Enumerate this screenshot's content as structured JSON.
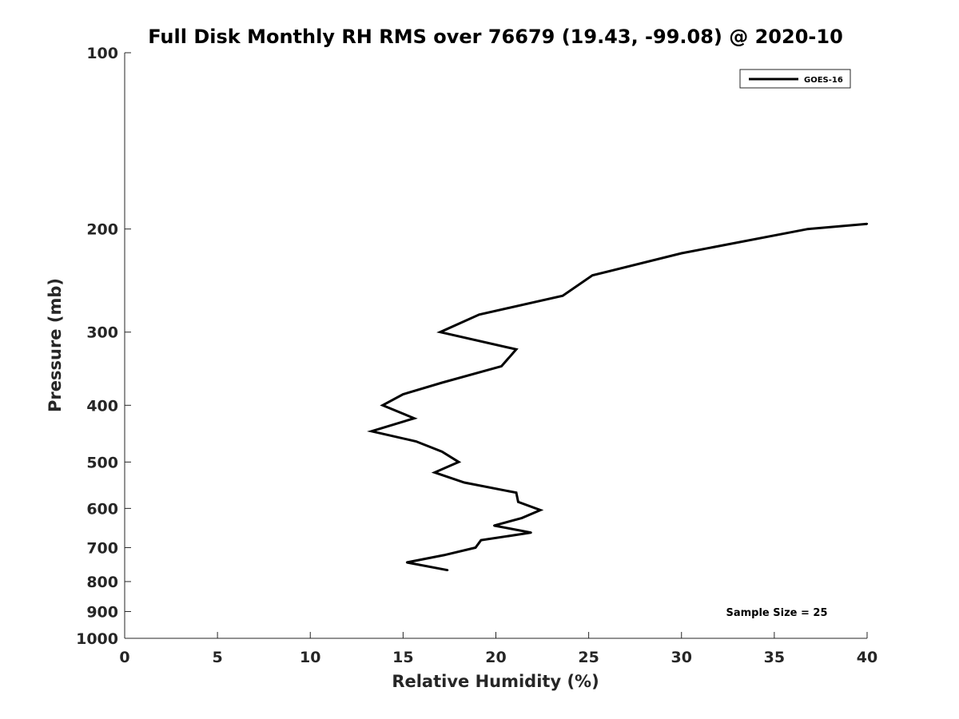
{
  "chart_data": {
    "type": "line",
    "title": "Full Disk Monthly RH RMS over 76679 (19.43, -99.08) @ 2020-10",
    "xlabel": "Relative Humidity (%)",
    "ylabel": "Pressure (mb)",
    "xlim": [
      0,
      40
    ],
    "ylim": [
      100,
      1000
    ],
    "y_scale": "log",
    "y_reversed": true,
    "grid": false,
    "legend_position": "top-right",
    "x_ticks": [
      0,
      5,
      10,
      15,
      20,
      25,
      30,
      35,
      40
    ],
    "y_ticks": [
      100,
      200,
      300,
      400,
      500,
      600,
      700,
      800,
      900,
      1000
    ],
    "series": [
      {
        "name": "GOES-16",
        "color": "#000000",
        "points": [
          {
            "x": 40.0,
            "y": 196
          },
          {
            "x": 36.8,
            "y": 200
          },
          {
            "x": 30.0,
            "y": 220
          },
          {
            "x": 25.2,
            "y": 240
          },
          {
            "x": 23.6,
            "y": 260
          },
          {
            "x": 19.1,
            "y": 280
          },
          {
            "x": 17.0,
            "y": 300
          },
          {
            "x": 21.1,
            "y": 321
          },
          {
            "x": 20.3,
            "y": 343
          },
          {
            "x": 17.1,
            "y": 366
          },
          {
            "x": 15.0,
            "y": 383
          },
          {
            "x": 13.9,
            "y": 400
          },
          {
            "x": 15.6,
            "y": 421
          },
          {
            "x": 13.3,
            "y": 443
          },
          {
            "x": 15.7,
            "y": 461
          },
          {
            "x": 17.1,
            "y": 480
          },
          {
            "x": 18.0,
            "y": 500
          },
          {
            "x": 16.7,
            "y": 521
          },
          {
            "x": 18.3,
            "y": 542
          },
          {
            "x": 21.1,
            "y": 564
          },
          {
            "x": 21.2,
            "y": 585
          },
          {
            "x": 22.4,
            "y": 604
          },
          {
            "x": 21.4,
            "y": 623
          },
          {
            "x": 19.9,
            "y": 642
          },
          {
            "x": 21.9,
            "y": 660
          },
          {
            "x": 19.2,
            "y": 680
          },
          {
            "x": 18.9,
            "y": 700
          },
          {
            "x": 17.2,
            "y": 721
          },
          {
            "x": 15.2,
            "y": 742
          },
          {
            "x": 17.4,
            "y": 765
          }
        ]
      }
    ],
    "annotations": [
      "Sample Size = 25"
    ]
  }
}
